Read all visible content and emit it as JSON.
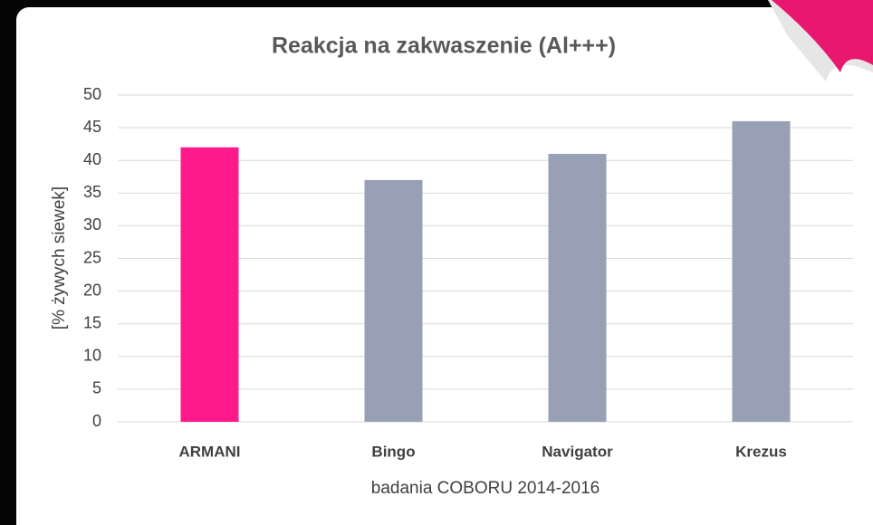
{
  "chart_data": {
    "type": "bar",
    "title": "Reakcja na zakwaszenie (Al+++)",
    "categories": [
      "ARMANI",
      "Bingo",
      "Navigator",
      "Krezus"
    ],
    "values": [
      42,
      37,
      41,
      46
    ],
    "colors": [
      "#ff1a8c",
      "#97a0b4",
      "#97a0b4",
      "#97a0b4"
    ],
    "ylim": [
      0,
      50
    ],
    "yticks": [
      0,
      5,
      10,
      15,
      20,
      25,
      30,
      35,
      40,
      45,
      50
    ],
    "ylabel": "[% żywych siewek]",
    "xlabel": "badania COBORU 2014-2016",
    "grid": true
  }
}
